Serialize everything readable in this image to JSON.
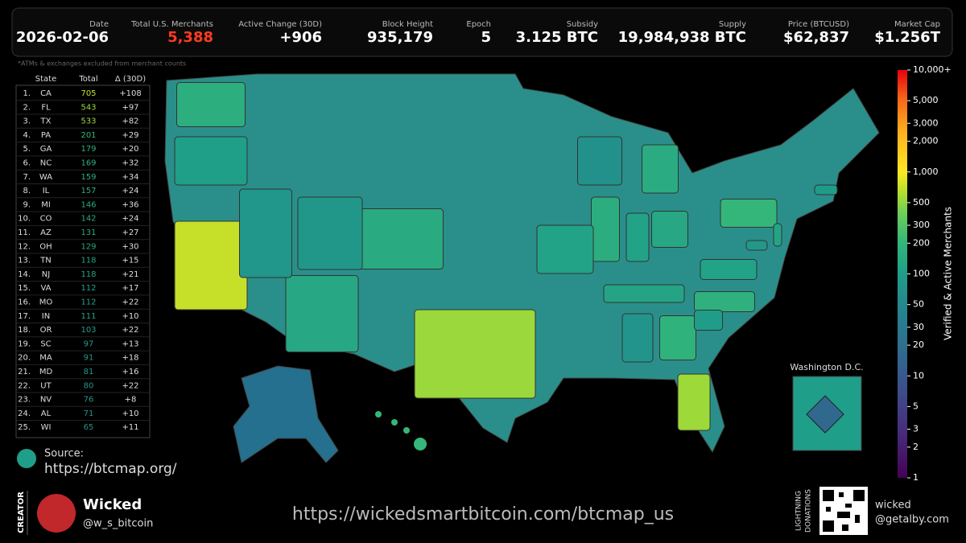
{
  "header": {
    "stats": [
      {
        "label": "Date",
        "value": "2026-02-06"
      },
      {
        "label": "Total U.S. Merchants",
        "value": "5,388"
      },
      {
        "label": "Active Change (30D)",
        "value": "+906"
      },
      {
        "label": "Block Height",
        "value": "935,179"
      },
      {
        "label": "Epoch",
        "value": "5"
      },
      {
        "label": "Subsidy",
        "value": "3.125 BTC"
      },
      {
        "label": "Supply",
        "value": "19,984,938 BTC"
      },
      {
        "label": "Price (BTCUSD)",
        "value": "$62,837"
      },
      {
        "label": "Market Cap",
        "value": "$1.256T"
      }
    ],
    "note": "*ATMs & exchanges excluded from merchant counts"
  },
  "table": {
    "columns": [
      "State",
      "Total",
      "Δ (30D)"
    ],
    "rows": [
      [
        "1.",
        "CA",
        705,
        "+108"
      ],
      [
        "2.",
        "FL",
        543,
        "+97"
      ],
      [
        "3.",
        "TX",
        533,
        "+82"
      ],
      [
        "4.",
        "PA",
        201,
        "+29"
      ],
      [
        "5.",
        "GA",
        179,
        "+20"
      ],
      [
        "6.",
        "NC",
        169,
        "+32"
      ],
      [
        "7.",
        "WA",
        159,
        "+34"
      ],
      [
        "8.",
        "IL",
        157,
        "+24"
      ],
      [
        "9.",
        "MI",
        146,
        "+36"
      ],
      [
        "10.",
        "CO",
        142,
        "+24"
      ],
      [
        "11.",
        "AZ",
        131,
        "+27"
      ],
      [
        "12.",
        "OH",
        129,
        "+30"
      ],
      [
        "13.",
        "TN",
        118,
        "+15"
      ],
      [
        "14.",
        "NJ",
        118,
        "+21"
      ],
      [
        "15.",
        "VA",
        112,
        "+17"
      ],
      [
        "16.",
        "MO",
        112,
        "+22"
      ],
      [
        "17.",
        "IN",
        111,
        "+10"
      ],
      [
        "18.",
        "OR",
        103,
        "+22"
      ],
      [
        "19.",
        "SC",
        97,
        "+13"
      ],
      [
        "20.",
        "MA",
        91,
        "+18"
      ],
      [
        "21.",
        "MD",
        81,
        "+16"
      ],
      [
        "22.",
        "UT",
        80,
        "+22"
      ],
      [
        "23.",
        "NV",
        76,
        "+8"
      ],
      [
        "24.",
        "AL",
        71,
        "+10"
      ],
      [
        "25.",
        "WI",
        65,
        "+11"
      ]
    ]
  },
  "map": {
    "inset_title": "Washington D.C.",
    "colorbar": {
      "label": "Verified & Active Merchants",
      "lim": [
        1,
        10000
      ],
      "log": true,
      "ticks": [
        1,
        2,
        3,
        5,
        10,
        20,
        30,
        50,
        100,
        200,
        300,
        500,
        {
          "value": 1000,
          "label": "1,000"
        },
        {
          "value": 2000,
          "label": "2,000"
        },
        {
          "value": 3000,
          "label": "3,000"
        },
        {
          "value": 5000,
          "label": "5,000"
        },
        {
          "value": 10000,
          "label": "10,000+"
        }
      ]
    }
  },
  "source": {
    "label": "Source:",
    "url": "https://btcmap.org/"
  },
  "creator": {
    "label": "CREATOR",
    "name": "Wicked",
    "handle": "@w_s_bitcoin"
  },
  "footer_url": "https://wickedsmartbitcoin.com/btcmap_us",
  "donation": {
    "label_lines": [
      "LIGHTNING",
      "DONATIONS"
    ],
    "address_lines": [
      "wicked",
      "@getalby.com"
    ]
  }
}
